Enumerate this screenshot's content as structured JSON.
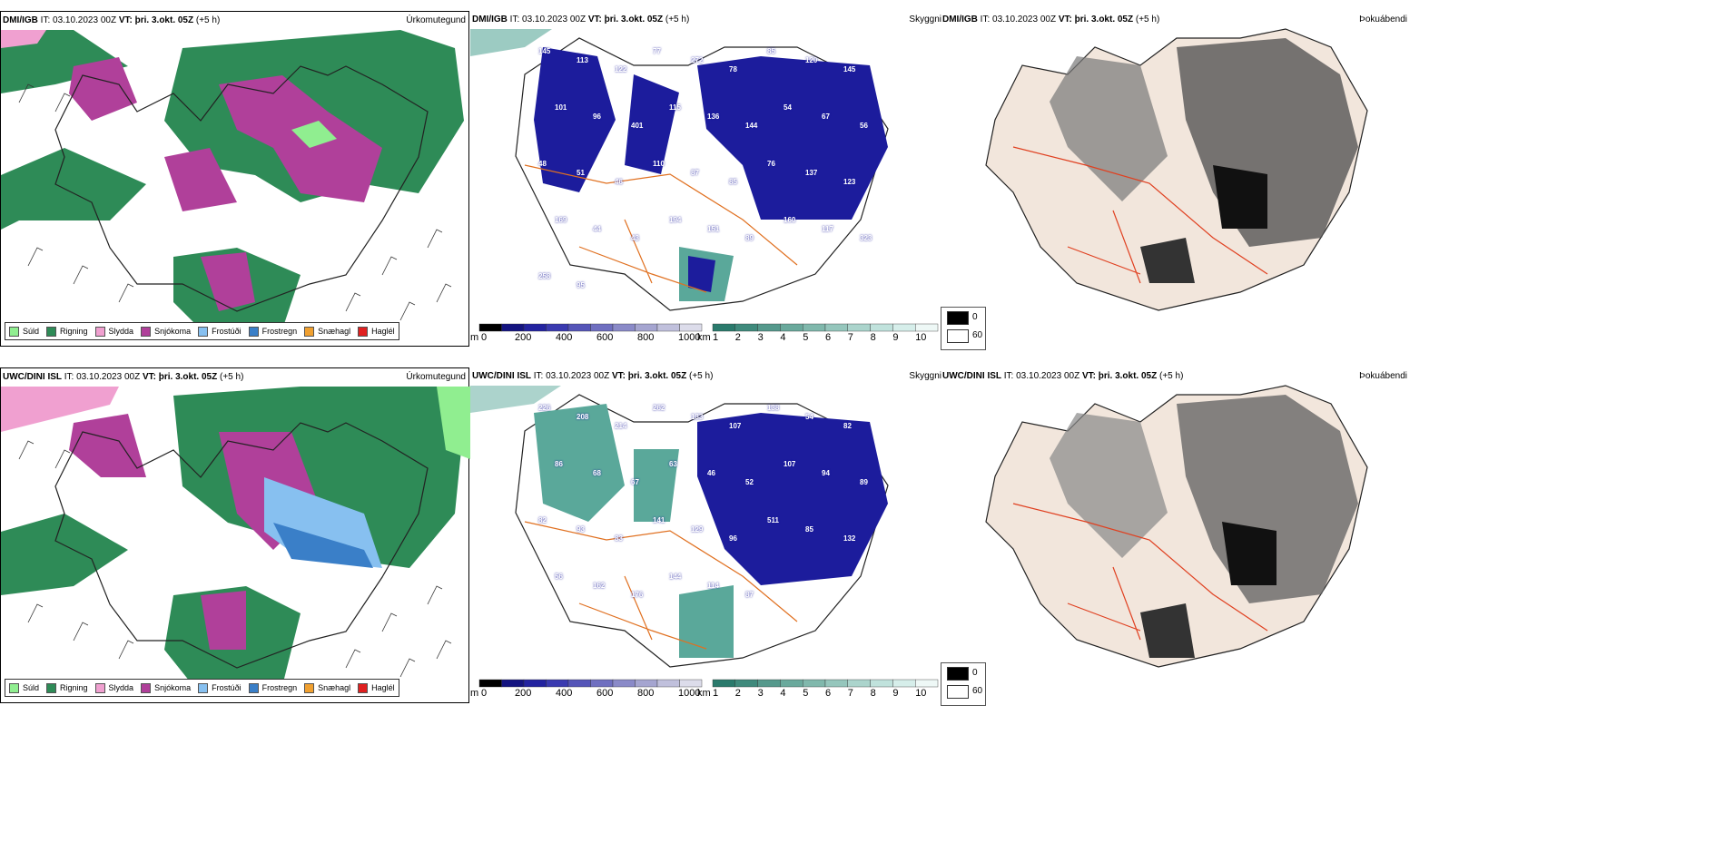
{
  "rows": [
    {
      "precip": {
        "model": "DMI/IGB",
        "it": "IT: 03.10.2023 00Z",
        "vt_label": "VT:",
        "vt": "þri. 3.okt. 05Z",
        "lead": "(+5 h)",
        "title": "Úrkomutegund"
      },
      "vis": {
        "model": "DMI/IGB",
        "it": "IT: 03.10.2023 00Z",
        "vt_label": "VT:",
        "vt": "þri. 3.okt. 05Z",
        "lead": "(+5 h)",
        "title": "Skyggni"
      },
      "cloud": {
        "model": "DMI/IGB",
        "it": "IT: 03.10.2023 00Z",
        "vt_label": "VT:",
        "vt": "þri. 3.okt. 05Z",
        "lead": "(+5 h)",
        "title": "Þokuábendi"
      }
    },
    {
      "precip": {
        "model": "UWC/DINI ISL",
        "it": "IT: 03.10.2023 00Z",
        "vt_label": "VT:",
        "vt": "þri. 3.okt. 05Z",
        "lead": "(+5 h)",
        "title": "Úrkomutegund"
      },
      "vis": {
        "model": "UWC/DINI ISL",
        "it": "IT: 03.10.2023 00Z",
        "vt_label": "VT:",
        "vt": "þri. 3.okt. 05Z",
        "lead": "(+5 h)",
        "title": "Skyggni"
      },
      "cloud": {
        "model": "UWC/DINI ISL",
        "it": "IT: 03.10.2023 00Z",
        "vt_label": "VT:",
        "vt": "þri. 3.okt. 05Z",
        "lead": "(+5 h)",
        "title": "Þokuábendi"
      }
    }
  ],
  "legend": [
    {
      "label": "Súld",
      "color": "#90ee90"
    },
    {
      "label": "Rigning",
      "color": "#2e8b57"
    },
    {
      "label": "Slydda",
      "color": "#f0a0d0"
    },
    {
      "label": "Snjókoma",
      "color": "#b0409a"
    },
    {
      "label": "Frostúði",
      "color": "#87c0f0"
    },
    {
      "label": "Frostregn",
      "color": "#3a7fc8"
    },
    {
      "label": "Snæhagl",
      "color": "#f0a030"
    },
    {
      "label": "Haglél",
      "color": "#e02020"
    }
  ],
  "height_scale": {
    "unit": "m",
    "ticks": [
      "0",
      "200",
      "400",
      "600",
      "800",
      "1000"
    ]
  },
  "vis_scale": {
    "unit": "km",
    "ticks": [
      "1",
      "2",
      "3",
      "4",
      "5",
      "6",
      "7",
      "8",
      "9",
      "10"
    ]
  },
  "cloud_key": {
    "dark": "0",
    "light": "60"
  },
  "vis_labels": [
    [
      "145",
      "113",
      "122",
      "77",
      "272",
      "78",
      "85",
      "120",
      "145",
      "101",
      "96",
      "401",
      "115",
      "136",
      "144",
      "54",
      "67",
      "56",
      "48",
      "51",
      "46",
      "110",
      "87",
      "85",
      "76",
      "137",
      "123",
      "169",
      "44",
      "43",
      "194",
      "151",
      "89",
      "160",
      "117",
      "323",
      "258",
      "95"
    ],
    [
      "226",
      "208",
      "214",
      "262",
      "133",
      "107",
      "138",
      "54",
      "82",
      "86",
      "68",
      "67",
      "63",
      "46",
      "52",
      "107",
      "94",
      "89",
      "82",
      "93",
      "83",
      "141",
      "129",
      "96",
      "511",
      "85",
      "132",
      "56",
      "162",
      "176",
      "144",
      "114",
      "87"
    ]
  ],
  "colors": {
    "rain": "#2e8b57",
    "snow": "#b0409a",
    "freezing": "#87c0f0",
    "freezing_rain": "#3a7fc8",
    "drizzle": "#90ee90",
    "sleet": "#f0a0d0",
    "low_vis": "#1c1c9c",
    "vis_green": "#5aa89a",
    "road": "#e07020",
    "coast": "#222222",
    "cloud_land": "#f2e6dc"
  }
}
